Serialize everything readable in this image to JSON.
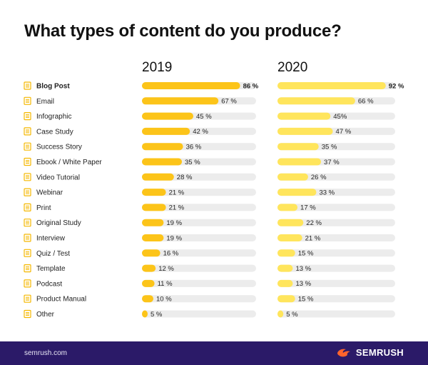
{
  "title": "What types of content do you produce?",
  "footer": {
    "site": "semrush.com",
    "brand": "SEMRUSH"
  },
  "colors": {
    "bar_2019": "#fcc419",
    "bar_2020": "#ffe55c",
    "track": "#ececec",
    "icon": "#f5b800",
    "footer_bg": "#2b1a68",
    "brand_flame": "#ff642d"
  },
  "icons": {
    "category": "document-icon",
    "brand": "flame-icon"
  },
  "chart_data": {
    "type": "bar",
    "orientation": "horizontal",
    "title": "What types of content do you produce?",
    "categories": [
      "Blog Post",
      "Email",
      "Infographic",
      "Case Study",
      "Success Story",
      "Ebook / White Paper",
      "Video Tutorial",
      "Webinar",
      "Print",
      "Original Study",
      "Interview",
      "Quiz / Test",
      "Template",
      "Podcast",
      "Product Manual",
      "Other"
    ],
    "series": [
      {
        "name": "2019",
        "values": [
          86,
          67,
          45,
          42,
          36,
          35,
          28,
          21,
          21,
          19,
          19,
          16,
          12,
          11,
          10,
          5
        ],
        "labels": [
          "86 %",
          "67 %",
          "45 %",
          "42 %",
          "36 %",
          "35 %",
          "28 %",
          "21 %",
          "21 %",
          "19 %",
          "19 %",
          "16 %",
          "12 %",
          "11 %",
          "10 %",
          "5 %"
        ]
      },
      {
        "name": "2020",
        "values": [
          92,
          66,
          45,
          47,
          35,
          37,
          26,
          33,
          17,
          22,
          21,
          15,
          13,
          13,
          15,
          5
        ],
        "labels": [
          "92 %",
          "66 %",
          "45%",
          "47 %",
          "35 %",
          "37 %",
          "26 %",
          "33 %",
          "17 %",
          "22 %",
          "21 %",
          "15 %",
          "13 %",
          "13 %",
          "15 %",
          "5 %"
        ]
      }
    ],
    "xlim": [
      0,
      100
    ],
    "grid": false,
    "legend": "none"
  }
}
